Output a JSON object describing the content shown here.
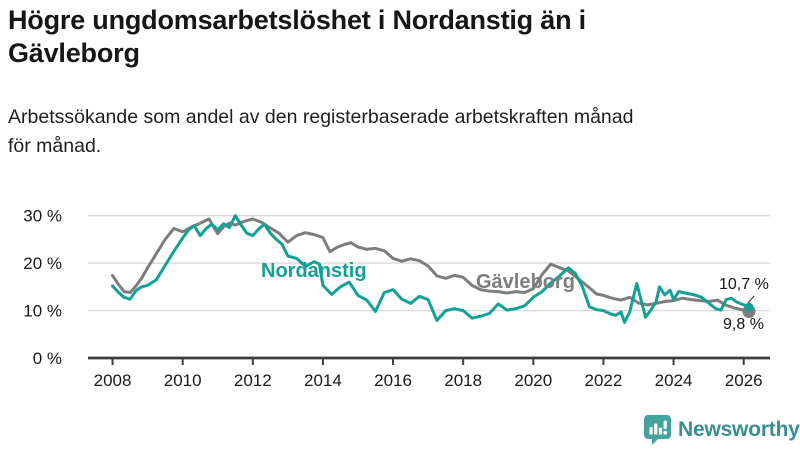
{
  "header": {
    "title_lines": [
      "Högre ungdomsarbetslöshet i Nordanstig än i",
      "Gävleborg"
    ],
    "subtitle_lines": [
      "Arbetssökande som andel av den registerbaserade arbetskraften månad",
      "för månad."
    ]
  },
  "chart_data": {
    "type": "line",
    "title": "Högre ungdomsarbetslöshet i Nordanstig än i Gävleborg",
    "subtitle": "Arbetssökande som andel av den registerbaserade arbetskraften månad för månad.",
    "xlabel": "",
    "ylabel": "",
    "x_unit": "year (decimal = monthly data)",
    "y_unit": "percent of registered labour force",
    "xlim": [
      2007.3,
      2026.75
    ],
    "ylim": [
      0,
      33.3
    ],
    "grid": "horizontal",
    "legend_position": "inline-labels",
    "colors": {
      "grid": "#d9d9d9",
      "axis": "#3d3d3d",
      "tick_text": "#1a1a1a",
      "annotation_text": "#141414"
    },
    "y_ticks": [
      {
        "value": 0,
        "label": "0 %"
      },
      {
        "value": 10,
        "label": "10 %"
      },
      {
        "value": 20,
        "label": "20 %"
      },
      {
        "value": 30,
        "label": "30 %"
      }
    ],
    "x_ticks": [
      {
        "value": 2008,
        "label": "2008"
      },
      {
        "value": 2010,
        "label": "2010"
      },
      {
        "value": 2012,
        "label": "2012"
      },
      {
        "value": 2014,
        "label": "2014"
      },
      {
        "value": 2016,
        "label": "2016"
      },
      {
        "value": 2018,
        "label": "2018"
      },
      {
        "value": 2020,
        "label": "2020"
      },
      {
        "value": 2022,
        "label": "2022"
      },
      {
        "value": 2024,
        "label": "2024"
      },
      {
        "value": 2026,
        "label": "2026"
      }
    ],
    "series": [
      {
        "name": "Nordanstig",
        "color": "#12a195",
        "end_label": "10,7 %",
        "end_value": 10.7,
        "points": [
          [
            2008.0,
            15.2
          ],
          [
            2008.17,
            13.8
          ],
          [
            2008.33,
            12.8
          ],
          [
            2008.5,
            12.4
          ],
          [
            2008.67,
            14.2
          ],
          [
            2008.83,
            15.0
          ],
          [
            2009.0,
            15.3
          ],
          [
            2009.25,
            16.5
          ],
          [
            2009.5,
            19.5
          ],
          [
            2009.75,
            22.5
          ],
          [
            2010.0,
            25.3
          ],
          [
            2010.17,
            27.0
          ],
          [
            2010.33,
            27.9
          ],
          [
            2010.5,
            25.8
          ],
          [
            2010.67,
            27.3
          ],
          [
            2010.83,
            28.2
          ],
          [
            2011.0,
            27.0
          ],
          [
            2011.17,
            28.3
          ],
          [
            2011.33,
            27.5
          ],
          [
            2011.5,
            30.0
          ],
          [
            2011.67,
            28.0
          ],
          [
            2011.83,
            26.3
          ],
          [
            2012.0,
            25.8
          ],
          [
            2012.17,
            27.2
          ],
          [
            2012.33,
            28.2
          ],
          [
            2012.5,
            26.3
          ],
          [
            2012.67,
            25.0
          ],
          [
            2012.83,
            24.0
          ],
          [
            2013.0,
            21.5
          ],
          [
            2013.25,
            21.0
          ],
          [
            2013.5,
            19.3
          ],
          [
            2013.75,
            20.3
          ],
          [
            2013.9,
            19.8
          ],
          [
            2014.0,
            15.3
          ],
          [
            2014.25,
            13.4
          ],
          [
            2014.5,
            15.0
          ],
          [
            2014.75,
            16.0
          ],
          [
            2015.0,
            13.2
          ],
          [
            2015.25,
            12.2
          ],
          [
            2015.5,
            9.8
          ],
          [
            2015.75,
            13.8
          ],
          [
            2016.0,
            14.4
          ],
          [
            2016.25,
            12.4
          ],
          [
            2016.5,
            11.5
          ],
          [
            2016.75,
            13.0
          ],
          [
            2017.0,
            12.3
          ],
          [
            2017.25,
            7.9
          ],
          [
            2017.5,
            10.0
          ],
          [
            2017.75,
            10.4
          ],
          [
            2018.0,
            10.0
          ],
          [
            2018.25,
            8.4
          ],
          [
            2018.5,
            8.8
          ],
          [
            2018.75,
            9.4
          ],
          [
            2019.0,
            11.4
          ],
          [
            2019.25,
            10.1
          ],
          [
            2019.5,
            10.4
          ],
          [
            2019.75,
            11.0
          ],
          [
            2020.0,
            12.8
          ],
          [
            2020.25,
            14.0
          ],
          [
            2020.5,
            15.8
          ],
          [
            2020.75,
            17.3
          ],
          [
            2021.0,
            19.0
          ],
          [
            2021.2,
            17.8
          ],
          [
            2021.4,
            15.0
          ],
          [
            2021.6,
            10.8
          ],
          [
            2021.8,
            10.2
          ],
          [
            2022.0,
            10.0
          ],
          [
            2022.2,
            9.3
          ],
          [
            2022.35,
            9.0
          ],
          [
            2022.5,
            9.7
          ],
          [
            2022.6,
            7.5
          ],
          [
            2022.75,
            9.7
          ],
          [
            2022.95,
            15.7
          ],
          [
            2023.2,
            8.6
          ],
          [
            2023.35,
            10.1
          ],
          [
            2023.5,
            11.8
          ],
          [
            2023.6,
            15.0
          ],
          [
            2023.75,
            13.3
          ],
          [
            2023.9,
            14.3
          ],
          [
            2024.0,
            12.3
          ],
          [
            2024.15,
            14.0
          ],
          [
            2024.4,
            13.6
          ],
          [
            2024.6,
            13.3
          ],
          [
            2024.8,
            12.8
          ],
          [
            2025.0,
            11.6
          ],
          [
            2025.2,
            10.4
          ],
          [
            2025.35,
            10.1
          ],
          [
            2025.5,
            12.3
          ],
          [
            2025.65,
            12.6
          ],
          [
            2025.8,
            11.8
          ],
          [
            2026.0,
            11.2
          ],
          [
            2026.15,
            10.7
          ]
        ]
      },
      {
        "name": "Gävleborg",
        "color": "#7d7d7d",
        "end_label": "9,8 %",
        "end_value": 9.8,
        "points": [
          [
            2008.0,
            17.4
          ],
          [
            2008.17,
            15.5
          ],
          [
            2008.33,
            14.0
          ],
          [
            2008.5,
            13.8
          ],
          [
            2008.67,
            15.2
          ],
          [
            2008.83,
            16.8
          ],
          [
            2009.0,
            19.0
          ],
          [
            2009.25,
            22.0
          ],
          [
            2009.5,
            25.0
          ],
          [
            2009.75,
            27.3
          ],
          [
            2010.0,
            26.6
          ],
          [
            2010.25,
            27.6
          ],
          [
            2010.5,
            28.4
          ],
          [
            2010.75,
            29.3
          ],
          [
            2011.0,
            26.2
          ],
          [
            2011.17,
            27.7
          ],
          [
            2011.33,
            28.4
          ],
          [
            2011.5,
            28.0
          ],
          [
            2011.75,
            28.8
          ],
          [
            2012.0,
            29.3
          ],
          [
            2012.25,
            28.6
          ],
          [
            2012.5,
            27.4
          ],
          [
            2012.75,
            26.3
          ],
          [
            2013.0,
            24.4
          ],
          [
            2013.25,
            25.8
          ],
          [
            2013.5,
            26.4
          ],
          [
            2013.75,
            26.0
          ],
          [
            2014.0,
            25.4
          ],
          [
            2014.2,
            22.4
          ],
          [
            2014.4,
            23.3
          ],
          [
            2014.6,
            23.9
          ],
          [
            2014.8,
            24.3
          ],
          [
            2015.0,
            23.4
          ],
          [
            2015.25,
            22.9
          ],
          [
            2015.5,
            23.1
          ],
          [
            2015.75,
            22.6
          ],
          [
            2016.0,
            21.0
          ],
          [
            2016.25,
            20.4
          ],
          [
            2016.5,
            20.9
          ],
          [
            2016.75,
            20.5
          ],
          [
            2017.0,
            19.4
          ],
          [
            2017.25,
            17.3
          ],
          [
            2017.5,
            16.8
          ],
          [
            2017.75,
            17.4
          ],
          [
            2018.0,
            17.0
          ],
          [
            2018.25,
            15.3
          ],
          [
            2018.5,
            14.4
          ],
          [
            2018.75,
            14.1
          ],
          [
            2019.0,
            14.0
          ],
          [
            2019.25,
            13.7
          ],
          [
            2019.5,
            14.0
          ],
          [
            2019.75,
            13.8
          ],
          [
            2020.0,
            14.6
          ],
          [
            2020.25,
            17.6
          ],
          [
            2020.5,
            19.8
          ],
          [
            2020.75,
            19.0
          ],
          [
            2021.0,
            18.4
          ],
          [
            2021.2,
            17.2
          ],
          [
            2021.4,
            16.0
          ],
          [
            2021.6,
            14.8
          ],
          [
            2021.8,
            13.5
          ],
          [
            2022.0,
            13.2
          ],
          [
            2022.25,
            12.6
          ],
          [
            2022.5,
            12.2
          ],
          [
            2022.75,
            12.8
          ],
          [
            2023.0,
            11.6
          ],
          [
            2023.25,
            11.2
          ],
          [
            2023.5,
            11.5
          ],
          [
            2023.75,
            11.9
          ],
          [
            2024.0,
            12.1
          ],
          [
            2024.25,
            12.6
          ],
          [
            2024.5,
            12.3
          ],
          [
            2024.75,
            12.1
          ],
          [
            2025.0,
            11.9
          ],
          [
            2025.25,
            12.2
          ],
          [
            2025.5,
            11.1
          ],
          [
            2025.75,
            10.5
          ],
          [
            2026.0,
            10.1
          ],
          [
            2026.15,
            9.8
          ]
        ]
      }
    ]
  },
  "footer": {
    "brand": "Newsworthy",
    "brand_text_color": "#3a8e93",
    "brand_icon": "newsworthy-chart-bubble-icon",
    "brand_icon_color": "#46a39b"
  }
}
